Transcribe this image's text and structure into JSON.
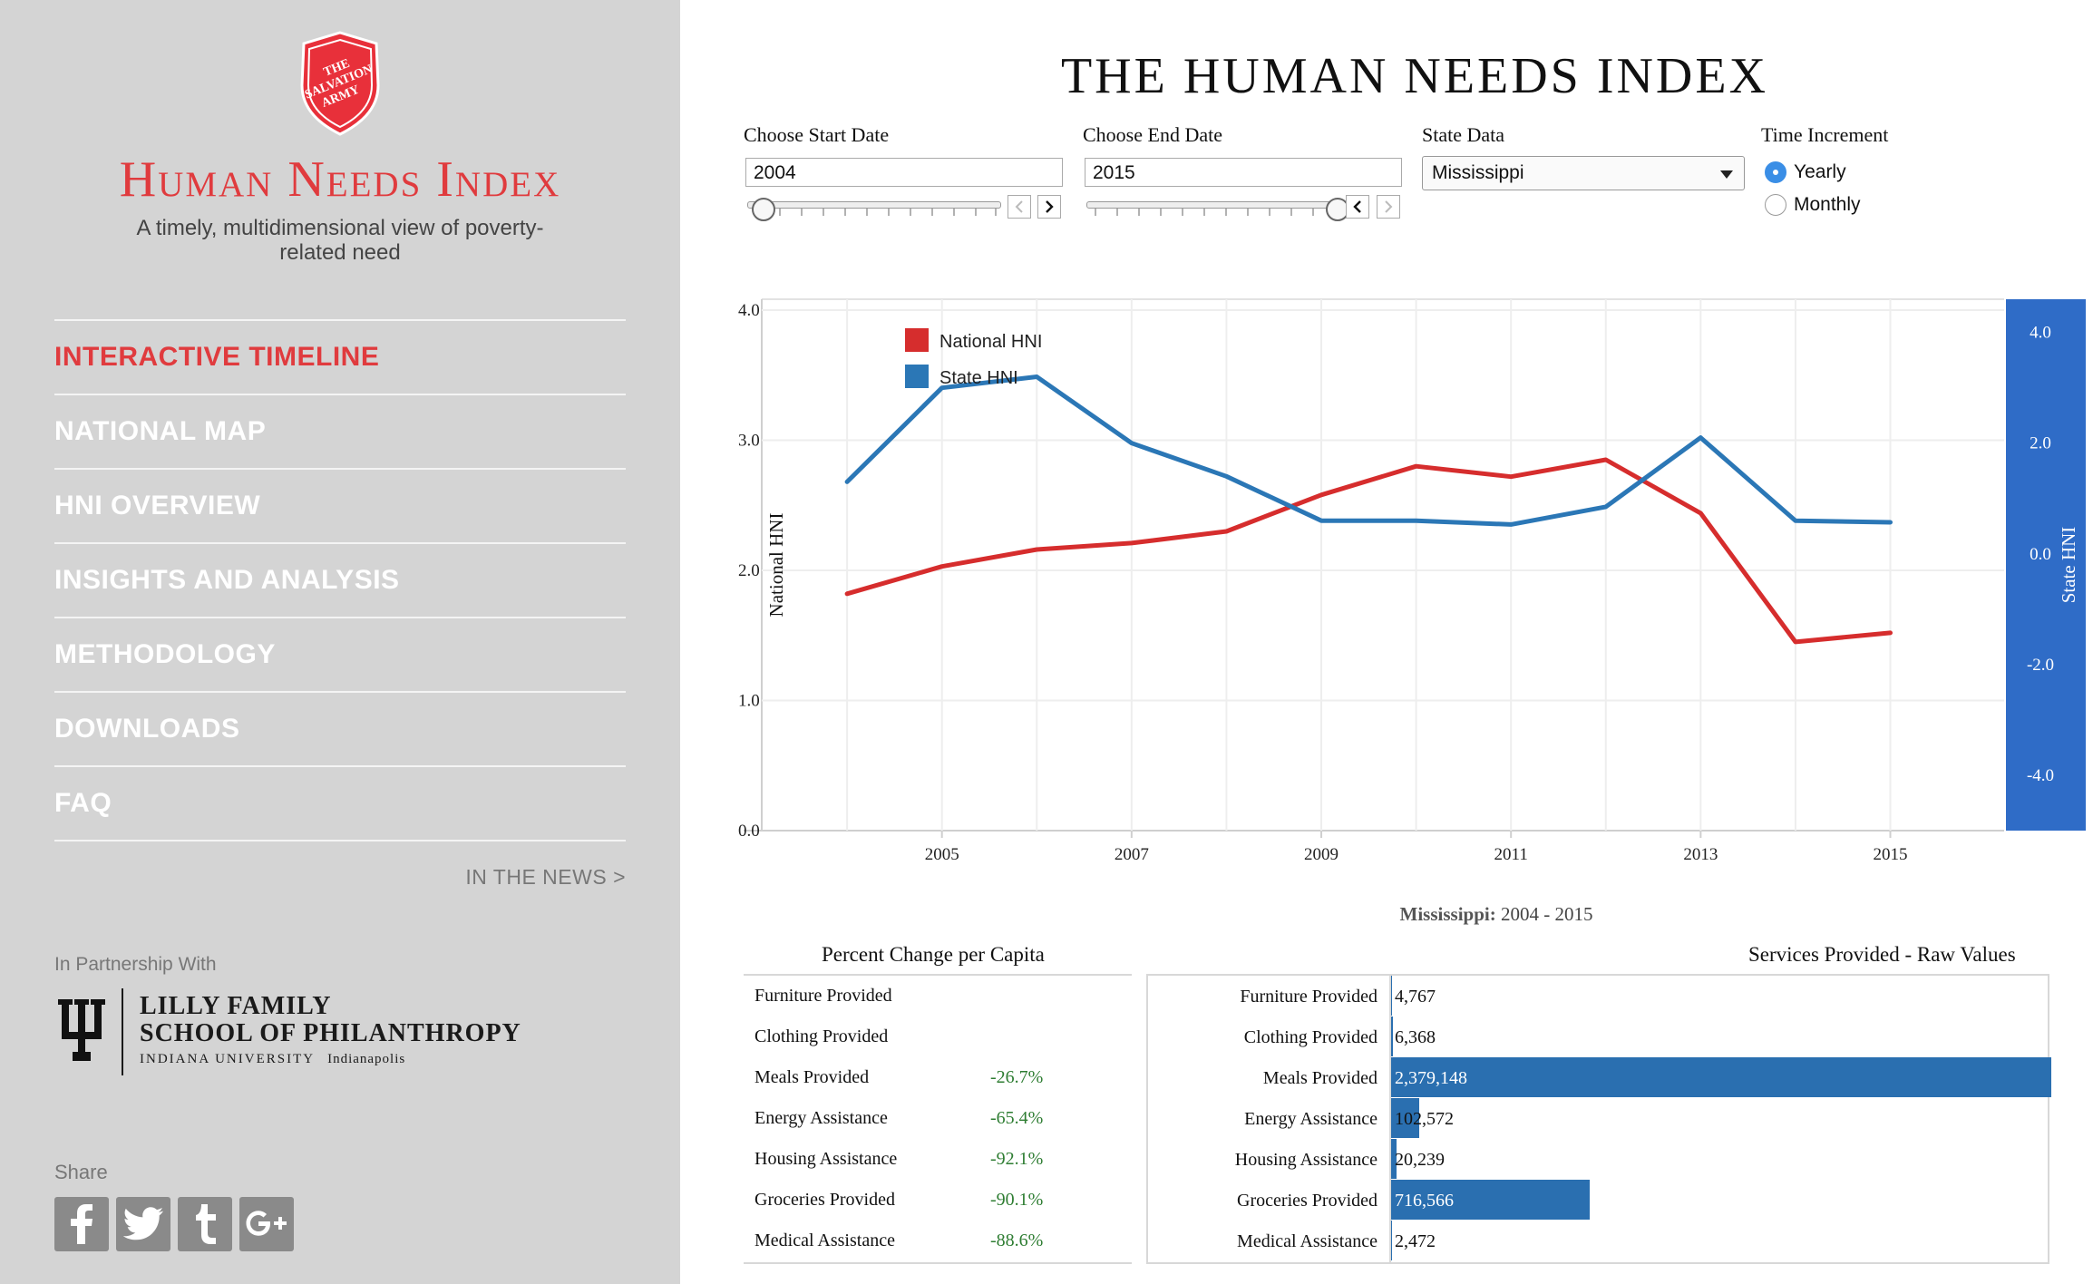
{
  "brand": {
    "logo_text": "THE SALVATION ARMY",
    "title": "Human Needs Index",
    "tagline": "A timely, multidimensional view of poverty-related need"
  },
  "nav": {
    "items": [
      {
        "label": "INTERACTIVE TIMELINE",
        "active": true
      },
      {
        "label": "NATIONAL MAP"
      },
      {
        "label": "HNI OVERVIEW"
      },
      {
        "label": "INSIGHTS AND ANALYSIS"
      },
      {
        "label": "METHODOLOGY"
      },
      {
        "label": "DOWNLOADS"
      },
      {
        "label": "FAQ"
      }
    ],
    "news_link": "IN THE NEWS >"
  },
  "partner": {
    "label": "In Partnership With",
    "line1": "LILLY FAMILY",
    "line2": "SCHOOL OF PHILANTHROPY",
    "line3": "INDIANA UNIVERSITY",
    "line3_campus": "Indianapolis"
  },
  "share": {
    "label": "Share",
    "icons": [
      "facebook-icon",
      "twitter-icon",
      "tumblr-icon",
      "google-plus-icon"
    ]
  },
  "page": {
    "title": "THE HUMAN NEEDS INDEX"
  },
  "controls": {
    "start_label": "Choose Start Date",
    "start_value": "2004",
    "end_label": "Choose End Date",
    "end_value": "2015",
    "state_label": "State Data",
    "state_value": "Mississippi",
    "increment_label": "Time Increment",
    "increment_options": [
      "Yearly",
      "Monthly"
    ],
    "increment_selected": "Yearly"
  },
  "chart_data": {
    "type": "line",
    "x": [
      2004,
      2005,
      2006,
      2007,
      2008,
      2009,
      2010,
      2011,
      2012,
      2013,
      2014,
      2015
    ],
    "x_ticks": [
      "2005",
      "2007",
      "2009",
      "2011",
      "2013",
      "2015"
    ],
    "series": [
      {
        "name": "National HNI",
        "color": "#d62d2d",
        "axis": "left",
        "values": [
          1.82,
          2.03,
          2.16,
          2.21,
          2.3,
          2.58,
          2.8,
          2.72,
          2.85,
          2.44,
          1.45,
          1.52
        ]
      },
      {
        "name": "State HNI",
        "color": "#2b77b6",
        "axis": "right",
        "values": [
          1.3,
          3.0,
          3.2,
          2.0,
          1.4,
          0.6,
          0.6,
          0.53,
          0.85,
          2.1,
          0.6,
          0.57
        ]
      }
    ],
    "ylabel": "National HNI",
    "ylim": [
      0,
      4
    ],
    "yticks": [
      "0.0",
      "1.0",
      "2.0",
      "3.0",
      "4.0"
    ],
    "y2label": "State HNI",
    "y2lim": [
      -5,
      4.6
    ],
    "y2ticks": [
      "-4.0",
      "-2.0",
      "0.0",
      "2.0",
      "4.0"
    ],
    "legend": "top-left",
    "subtitle_state": "Mississippi:",
    "subtitle_range": "2004 - 2015"
  },
  "percent_change": {
    "title": "Percent Change per Capita",
    "rows": [
      {
        "name": "Furniture Provided",
        "value": ""
      },
      {
        "name": "Clothing Provided",
        "value": ""
      },
      {
        "name": "Meals Provided",
        "value": "-26.7%"
      },
      {
        "name": "Energy Assistance",
        "value": "-65.4%"
      },
      {
        "name": "Housing Assistance",
        "value": "-92.1%"
      },
      {
        "name": "Groceries Provided",
        "value": "-90.1%"
      },
      {
        "name": "Medical Assistance",
        "value": "-88.6%"
      }
    ]
  },
  "services": {
    "title": "Services Provided - Raw Values",
    "max": 2379148,
    "rows": [
      {
        "name": "Furniture Provided",
        "label": "4,767",
        "value": 4767
      },
      {
        "name": "Clothing Provided",
        "label": "6,368",
        "value": 6368
      },
      {
        "name": "Meals Provided",
        "label": "2,379,148",
        "value": 2379148
      },
      {
        "name": "Energy Assistance",
        "label": "102,572",
        "value": 102572
      },
      {
        "name": "Housing Assistance",
        "label": "20,239",
        "value": 20239
      },
      {
        "name": "Groceries Provided",
        "label": "716,566",
        "value": 716566
      },
      {
        "name": "Medical Assistance",
        "label": "2,472",
        "value": 2472
      }
    ]
  },
  "colors": {
    "brand_red": "#e03b3e",
    "national_red": "#d62d2d",
    "state_blue": "#2b77b6",
    "bar_blue": "#2a6fb0",
    "right_axis_band": "#2f6cc7",
    "positive_green": "#2e7d32"
  }
}
